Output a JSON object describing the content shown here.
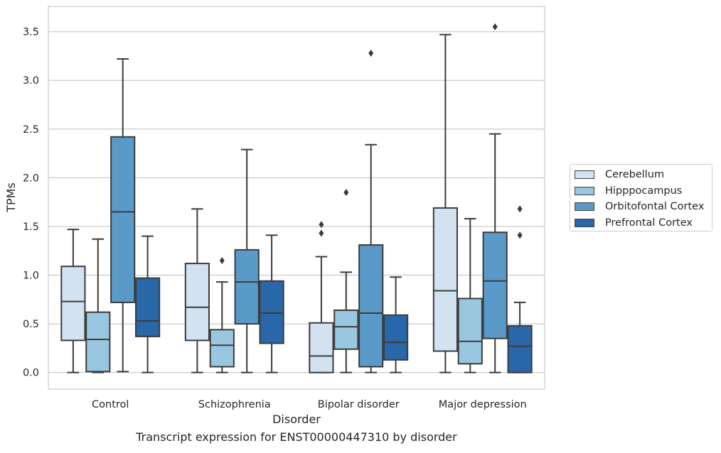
{
  "chart_data": {
    "type": "box",
    "xlabel": "Disorder",
    "ylabel": "TPMs",
    "ylim": [
      -0.17,
      3.76
    ],
    "yticks": [
      "0.0",
      "0.5",
      "1.0",
      "1.5",
      "2.0",
      "2.5",
      "3.0",
      "3.5"
    ],
    "grid": "horizontal",
    "legend_position": "right",
    "categories": [
      "Control",
      "Schizophrenia",
      "Bipolar disorder",
      "Major depression"
    ],
    "series": [
      {
        "name": "Cerebellum",
        "color": "#d2e2f1",
        "boxes": [
          {
            "whislo": 0.0,
            "q1": 0.33,
            "med": 0.73,
            "q3": 1.09,
            "whishi": 1.47,
            "fliers": []
          },
          {
            "whislo": 0.0,
            "q1": 0.33,
            "med": 0.67,
            "q3": 1.12,
            "whishi": 1.68,
            "fliers": []
          },
          {
            "whislo": 0.0,
            "q1": 0.0,
            "med": 0.17,
            "q3": 0.51,
            "whishi": 1.19,
            "fliers": [
              1.43,
              1.52
            ]
          },
          {
            "whislo": 0.0,
            "q1": 0.22,
            "med": 0.84,
            "q3": 1.69,
            "whishi": 3.47,
            "fliers": []
          }
        ]
      },
      {
        "name": "Hipppocampus",
        "color": "#9ac7e0",
        "boxes": [
          {
            "whislo": 0.0,
            "q1": 0.01,
            "med": 0.34,
            "q3": 0.62,
            "whishi": 1.37,
            "fliers": []
          },
          {
            "whislo": 0.0,
            "q1": 0.06,
            "med": 0.28,
            "q3": 0.44,
            "whishi": 0.93,
            "fliers": [
              1.15
            ]
          },
          {
            "whislo": 0.0,
            "q1": 0.24,
            "med": 0.47,
            "q3": 0.64,
            "whishi": 1.03,
            "fliers": [
              1.85
            ]
          },
          {
            "whislo": 0.0,
            "q1": 0.09,
            "med": 0.32,
            "q3": 0.76,
            "whishi": 1.58,
            "fliers": []
          }
        ]
      },
      {
        "name": "Orbitofontal Cortex",
        "color": "#5a9ac8",
        "boxes": [
          {
            "whislo": 0.01,
            "q1": 0.72,
            "med": 1.65,
            "q3": 2.42,
            "whishi": 3.22,
            "fliers": []
          },
          {
            "whislo": 0.0,
            "q1": 0.5,
            "med": 0.93,
            "q3": 1.26,
            "whishi": 2.29,
            "fliers": []
          },
          {
            "whislo": 0.0,
            "q1": 0.06,
            "med": 0.61,
            "q3": 1.31,
            "whishi": 2.34,
            "fliers": [
              3.28
            ]
          },
          {
            "whislo": 0.0,
            "q1": 0.35,
            "med": 0.94,
            "q3": 1.44,
            "whishi": 2.45,
            "fliers": [
              3.55
            ]
          }
        ]
      },
      {
        "name": "Prefrontal Cortex",
        "color": "#2a67a8",
        "boxes": [
          {
            "whislo": 0.0,
            "q1": 0.37,
            "med": 0.53,
            "q3": 0.97,
            "whishi": 1.4,
            "fliers": []
          },
          {
            "whislo": 0.0,
            "q1": 0.3,
            "med": 0.61,
            "q3": 0.94,
            "whishi": 1.41,
            "fliers": []
          },
          {
            "whislo": 0.0,
            "q1": 0.13,
            "med": 0.31,
            "q3": 0.59,
            "whishi": 0.98,
            "fliers": []
          },
          {
            "whislo": 0.0,
            "q1": 0.0,
            "med": 0.27,
            "q3": 0.48,
            "whishi": 0.72,
            "fliers": [
              1.41,
              1.68
            ]
          }
        ]
      }
    ]
  },
  "caption": "Transcript expression for ENST00000447310 by disorder"
}
